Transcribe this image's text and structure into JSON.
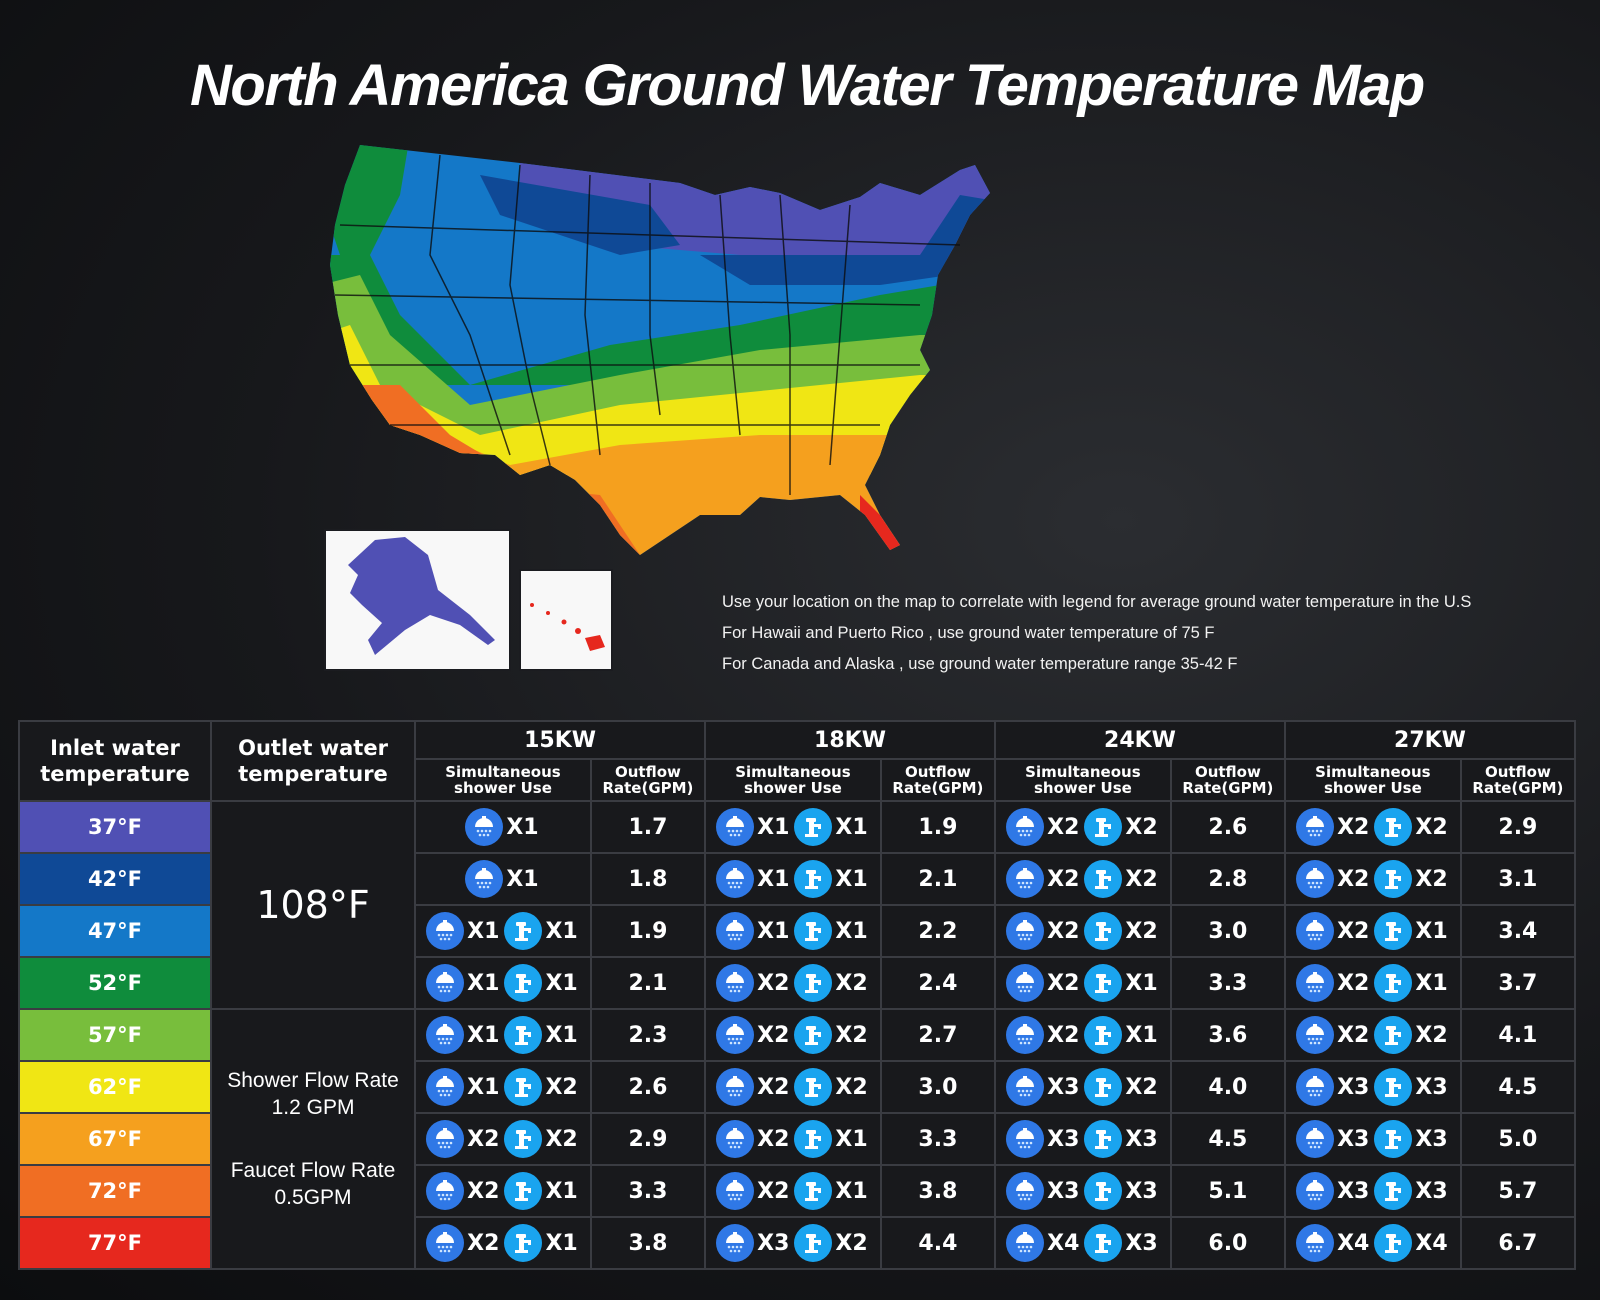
{
  "title": "North America Ground Water Temperature Map",
  "notes": [
    "Use your location on the map to correlate with legend for average ground water temperature in the U.S",
    "For Hawaii and Puerto Rico , use ground water temperature of 75  F",
    "For Canada and Alaska , use ground water temperature range 35-42  F"
  ],
  "table": {
    "header_inlet": "Inlet water temperature",
    "header_outlet": "Outlet water temperature",
    "header_use": "Simultaneous shower Use",
    "header_rate": "Outflow Rate(GPM)",
    "models": [
      "15KW",
      "18KW",
      "24KW",
      "27KW"
    ],
    "outlet_temp": "108°F",
    "shower_flow_label": "Shower Flow Rate",
    "shower_flow_value": "1.2 GPM",
    "faucet_flow_label": "Faucet Flow Rate",
    "faucet_flow_value": "0.5GPM",
    "rows": [
      {
        "temp": "37°F",
        "color": "#5050b4",
        "cells": [
          {
            "use": [
              [
                "shower",
                "X1"
              ]
            ],
            "rate": "1.7"
          },
          {
            "use": [
              [
                "shower",
                "X1"
              ],
              [
                "faucet",
                "X1"
              ]
            ],
            "rate": "1.9"
          },
          {
            "use": [
              [
                "shower",
                "X2"
              ],
              [
                "faucet",
                "X2"
              ]
            ],
            "rate": "2.6"
          },
          {
            "use": [
              [
                "shower",
                "X2"
              ],
              [
                "faucet",
                "X2"
              ]
            ],
            "rate": "2.9"
          }
        ]
      },
      {
        "temp": "42°F",
        "color": "#0f4996",
        "cells": [
          {
            "use": [
              [
                "shower",
                "X1"
              ]
            ],
            "rate": "1.8"
          },
          {
            "use": [
              [
                "shower",
                "X1"
              ],
              [
                "faucet",
                "X1"
              ]
            ],
            "rate": "2.1"
          },
          {
            "use": [
              [
                "shower",
                "X2"
              ],
              [
                "faucet",
                "X2"
              ]
            ],
            "rate": "2.8"
          },
          {
            "use": [
              [
                "shower",
                "X2"
              ],
              [
                "faucet",
                "X2"
              ]
            ],
            "rate": "3.1"
          }
        ]
      },
      {
        "temp": "47°F",
        "color": "#1478c8",
        "cells": [
          {
            "use": [
              [
                "shower",
                "X1"
              ],
              [
                "faucet",
                "X1"
              ]
            ],
            "rate": "1.9"
          },
          {
            "use": [
              [
                "shower",
                "X1"
              ],
              [
                "faucet",
                "X1"
              ]
            ],
            "rate": "2.2"
          },
          {
            "use": [
              [
                "shower",
                "X2"
              ],
              [
                "faucet",
                "X2"
              ]
            ],
            "rate": "3.0"
          },
          {
            "use": [
              [
                "shower",
                "X2"
              ],
              [
                "faucet",
                "X1"
              ]
            ],
            "rate": "3.4"
          }
        ]
      },
      {
        "temp": "52°F",
        "color": "#0f8c3c",
        "cells": [
          {
            "use": [
              [
                "shower",
                "X1"
              ],
              [
                "faucet",
                "X1"
              ]
            ],
            "rate": "2.1"
          },
          {
            "use": [
              [
                "shower",
                "X2"
              ],
              [
                "faucet",
                "X2"
              ]
            ],
            "rate": "2.4"
          },
          {
            "use": [
              [
                "shower",
                "X2"
              ],
              [
                "faucet",
                "X1"
              ]
            ],
            "rate": "3.3"
          },
          {
            "use": [
              [
                "shower",
                "X2"
              ],
              [
                "faucet",
                "X1"
              ]
            ],
            "rate": "3.7"
          }
        ]
      },
      {
        "temp": "57°F",
        "color": "#78be3c",
        "cells": [
          {
            "use": [
              [
                "shower",
                "X1"
              ],
              [
                "faucet",
                "X1"
              ]
            ],
            "rate": "2.3"
          },
          {
            "use": [
              [
                "shower",
                "X2"
              ],
              [
                "faucet",
                "X2"
              ]
            ],
            "rate": "2.7"
          },
          {
            "use": [
              [
                "shower",
                "X2"
              ],
              [
                "faucet",
                "X1"
              ]
            ],
            "rate": "3.6"
          },
          {
            "use": [
              [
                "shower",
                "X2"
              ],
              [
                "faucet",
                "X2"
              ]
            ],
            "rate": "4.1"
          }
        ]
      },
      {
        "temp": "62°F",
        "color": "#f0e614",
        "cells": [
          {
            "use": [
              [
                "shower",
                "X1"
              ],
              [
                "faucet",
                "X2"
              ]
            ],
            "rate": "2.6"
          },
          {
            "use": [
              [
                "shower",
                "X2"
              ],
              [
                "faucet",
                "X2"
              ]
            ],
            "rate": "3.0"
          },
          {
            "use": [
              [
                "shower",
                "X3"
              ],
              [
                "faucet",
                "X2"
              ]
            ],
            "rate": "4.0"
          },
          {
            "use": [
              [
                "shower",
                "X3"
              ],
              [
                "faucet",
                "X3"
              ]
            ],
            "rate": "4.5"
          }
        ]
      },
      {
        "temp": "67°F",
        "color": "#f5a01e",
        "cells": [
          {
            "use": [
              [
                "shower",
                "X2"
              ],
              [
                "faucet",
                "X2"
              ]
            ],
            "rate": "2.9"
          },
          {
            "use": [
              [
                "shower",
                "X2"
              ],
              [
                "faucet",
                "X1"
              ]
            ],
            "rate": "3.3"
          },
          {
            "use": [
              [
                "shower",
                "X3"
              ],
              [
                "faucet",
                "X3"
              ]
            ],
            "rate": "4.5"
          },
          {
            "use": [
              [
                "shower",
                "X3"
              ],
              [
                "faucet",
                "X3"
              ]
            ],
            "rate": "5.0"
          }
        ]
      },
      {
        "temp": "72°F",
        "color": "#f06e23",
        "cells": [
          {
            "use": [
              [
                "shower",
                "X2"
              ],
              [
                "faucet",
                "X1"
              ]
            ],
            "rate": "3.3"
          },
          {
            "use": [
              [
                "shower",
                "X2"
              ],
              [
                "faucet",
                "X1"
              ]
            ],
            "rate": "3.8"
          },
          {
            "use": [
              [
                "shower",
                "X3"
              ],
              [
                "faucet",
                "X3"
              ]
            ],
            "rate": "5.1"
          },
          {
            "use": [
              [
                "shower",
                "X3"
              ],
              [
                "faucet",
                "X3"
              ]
            ],
            "rate": "5.7"
          }
        ]
      },
      {
        "temp": "77°F",
        "color": "#e6281e",
        "cells": [
          {
            "use": [
              [
                "shower",
                "X2"
              ],
              [
                "faucet",
                "X1"
              ]
            ],
            "rate": "3.8"
          },
          {
            "use": [
              [
                "shower",
                "X3"
              ],
              [
                "faucet",
                "X2"
              ]
            ],
            "rate": "4.4"
          },
          {
            "use": [
              [
                "shower",
                "X4"
              ],
              [
                "faucet",
                "X3"
              ]
            ],
            "rate": "6.0"
          },
          {
            "use": [
              [
                "shower",
                "X4"
              ],
              [
                "faucet",
                "X4"
              ]
            ],
            "rate": "6.7"
          }
        ]
      }
    ]
  },
  "icons": {
    "shower": "shower-head-icon",
    "faucet": "faucet-icon"
  }
}
